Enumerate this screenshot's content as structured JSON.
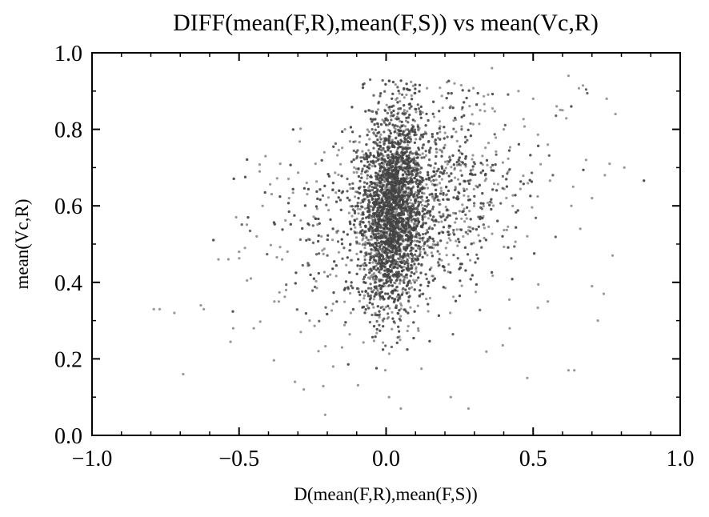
{
  "chart_data": {
    "type": "scatter",
    "title": "DIFF(mean(F,R),mean(F,S)) vs mean(Vc,R)",
    "xlabel": "D(mean(F,R),mean(F,S))",
    "ylabel": "mean(Vc,R)",
    "xlim": [
      -1.0,
      1.0
    ],
    "ylim": [
      0.0,
      1.0
    ],
    "xticks": [
      -1.0,
      -0.5,
      0.0,
      0.5,
      1.0
    ],
    "xtick_labels": [
      "−1.0",
      "−0.5",
      "0.0",
      "0.5",
      "1.0"
    ],
    "yticks": [
      0.0,
      0.2,
      0.4,
      0.6,
      0.8,
      1.0
    ],
    "ytick_labels": [
      "0.0",
      "0.2",
      "0.4",
      "0.6",
      "0.8",
      "1.0"
    ],
    "grid": false,
    "marker_color": "#444444",
    "points": [
      [
        -0.79,
        0.33
      ],
      [
        -0.77,
        0.33
      ],
      [
        -0.72,
        0.32
      ],
      [
        -0.69,
        0.16
      ],
      [
        -0.63,
        0.34
      ],
      [
        -0.62,
        0.33
      ],
      [
        -0.57,
        0.46
      ],
      [
        -0.52,
        0.28
      ],
      [
        -0.51,
        0.57
      ],
      [
        -0.5,
        0.48
      ],
      [
        -0.48,
        0.49
      ],
      [
        -0.46,
        0.41
      ],
      [
        -0.45,
        0.28
      ],
      [
        -0.44,
        0.52
      ],
      [
        -0.43,
        0.69
      ],
      [
        -0.42,
        0.6
      ],
      [
        -0.41,
        0.73
      ],
      [
        -0.38,
        0.35
      ],
      [
        -0.36,
        0.71
      ],
      [
        -0.34,
        0.38
      ],
      [
        -0.33,
        0.62
      ],
      [
        -0.31,
        0.14
      ],
      [
        -0.29,
        0.27
      ],
      [
        -0.28,
        0.12
      ],
      [
        -0.27,
        0.66
      ],
      [
        -0.26,
        0.3
      ],
      [
        -0.24,
        0.71
      ],
      [
        -0.23,
        0.22
      ],
      [
        -0.22,
        0.52
      ],
      [
        -0.21,
        0.74
      ],
      [
        -0.19,
        0.42
      ],
      [
        -0.18,
        0.18
      ],
      [
        -0.16,
        0.64
      ],
      [
        -0.15,
        0.23
      ],
      [
        -0.14,
        0.8
      ],
      [
        -0.12,
        0.32
      ],
      [
        0.22,
        0.1
      ],
      [
        0.28,
        0.07
      ],
      [
        0.32,
        0.85
      ],
      [
        0.36,
        0.96
      ],
      [
        0.4,
        0.8
      ],
      [
        0.45,
        0.9
      ],
      [
        0.5,
        0.88
      ],
      [
        0.55,
        0.35
      ],
      [
        0.58,
        0.86
      ],
      [
        0.62,
        0.94
      ],
      [
        0.62,
        0.17
      ],
      [
        0.64,
        0.17
      ],
      [
        0.66,
        0.54
      ],
      [
        0.68,
        0.72
      ],
      [
        0.7,
        0.39
      ],
      [
        0.72,
        0.3
      ],
      [
        0.74,
        0.37
      ],
      [
        0.75,
        0.88
      ],
      [
        0.76,
        0.71
      ],
      [
        0.77,
        0.47
      ],
      [
        0.78,
        0.84
      ],
      [
        0.81,
        0.7
      ],
      [
        0.6,
        0.85
      ],
      [
        0.55,
        0.76
      ],
      [
        0.48,
        0.15
      ],
      [
        0.42,
        0.28
      ],
      [
        0.05,
        0.07
      ],
      [
        0.01,
        0.1
      ],
      [
        0.63,
        0.6
      ],
      [
        0.7,
        0.62
      ]
    ]
  }
}
